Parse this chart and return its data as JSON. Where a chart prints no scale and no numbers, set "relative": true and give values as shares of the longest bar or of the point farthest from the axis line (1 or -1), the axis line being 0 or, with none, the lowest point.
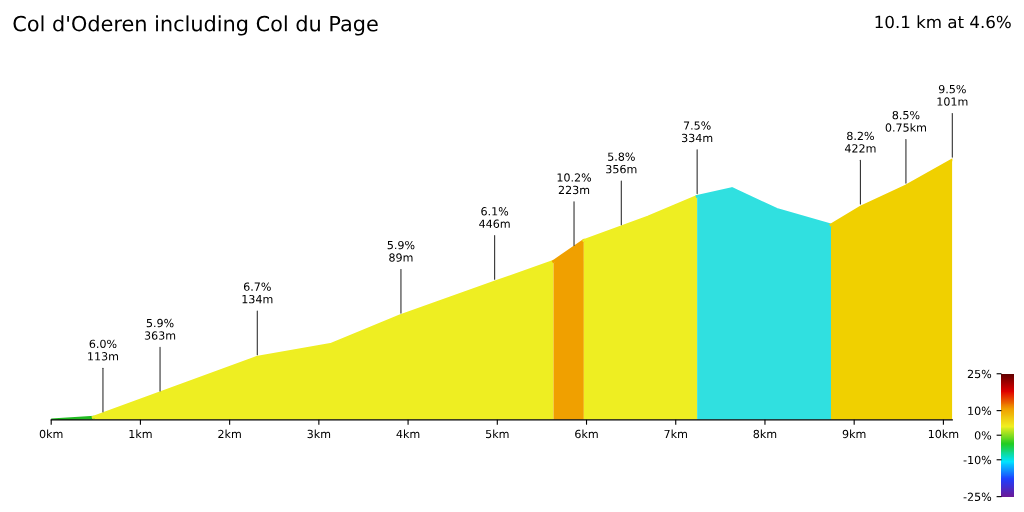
{
  "chart_data": {
    "type": "area",
    "title": "Col d'Oderen including Col du Page",
    "subtitle": "10.1 km at 4.6%",
    "relative": true,
    "xlim": [
      0,
      10.1
    ],
    "xticks": [
      {
        "value": 0,
        "label": "0km"
      },
      {
        "value": 1,
        "label": "1km"
      },
      {
        "value": 2,
        "label": "2km"
      },
      {
        "value": 3,
        "label": "3km"
      },
      {
        "value": 4,
        "label": "4km"
      },
      {
        "value": 5,
        "label": "5km"
      },
      {
        "value": 6,
        "label": "6km"
      },
      {
        "value": 7,
        "label": "7km"
      },
      {
        "value": 8,
        "label": "8km"
      },
      {
        "value": 9,
        "label": "9km"
      },
      {
        "value": 10,
        "label": "10km"
      }
    ],
    "series": [
      {
        "color": "#22bb22",
        "x": [
          0,
          0.47
        ],
        "values": [
          0,
          0.01
        ]
      },
      {
        "color": "#eeee22",
        "x": [
          0.47,
          1.19,
          2.3,
          3.13,
          3.91,
          4.97,
          5.63
        ],
        "values": [
          0.01,
          0.1,
          0.24,
          0.29,
          0.4,
          0.53,
          0.61
        ]
      },
      {
        "color": "#f0a000",
        "x": [
          5.63,
          5.97
        ],
        "values": [
          0.61,
          0.69
        ]
      },
      {
        "color": "#eeee22",
        "x": [
          5.97,
          6.69,
          7.24
        ],
        "values": [
          0.69,
          0.78,
          0.86
        ]
      },
      {
        "color": "#30e0e0",
        "x": [
          7.24,
          7.63,
          8.13,
          8.74
        ],
        "values": [
          0.86,
          0.89,
          0.81,
          0.75
        ]
      },
      {
        "color": "#f0d000",
        "x": [
          8.74,
          9.08,
          9.58,
          10.1
        ],
        "values": [
          0.75,
          0.82,
          0.9,
          1.0
        ]
      }
    ],
    "annotations": [
      {
        "text": "6.0%\n113m",
        "x": 0.58,
        "y": 0.02
      },
      {
        "text": "5.9%\n363m",
        "x": 1.22,
        "y": 0.1
      },
      {
        "text": "6.7%\n134m",
        "x": 2.31,
        "y": 0.24
      },
      {
        "text": "5.9%\n89m",
        "x": 3.92,
        "y": 0.4
      },
      {
        "text": "6.1%\n446m",
        "x": 4.97,
        "y": 0.53
      },
      {
        "text": "10.2%\n223m",
        "x": 5.86,
        "y": 0.66
      },
      {
        "text": "5.8%\n356m",
        "x": 6.39,
        "y": 0.74
      },
      {
        "text": "7.5%\n334m",
        "x": 7.24,
        "y": 0.86
      },
      {
        "text": "8.2%\n422m",
        "x": 9.07,
        "y": 0.82
      },
      {
        "text": "8.5%\n0.75km",
        "x": 9.58,
        "y": 0.9
      },
      {
        "text": "9.5%\n101m",
        "x": 10.1,
        "y": 1.0
      }
    ],
    "clim": [
      -25,
      25
    ],
    "cticks": [
      {
        "value": 25,
        "label": "25%"
      },
      {
        "value": 10,
        "label": "10%"
      },
      {
        "value": 0,
        "label": "0%"
      },
      {
        "value": -10,
        "label": "-10%"
      },
      {
        "value": -25,
        "label": "-25%"
      }
    ],
    "grid": false
  }
}
